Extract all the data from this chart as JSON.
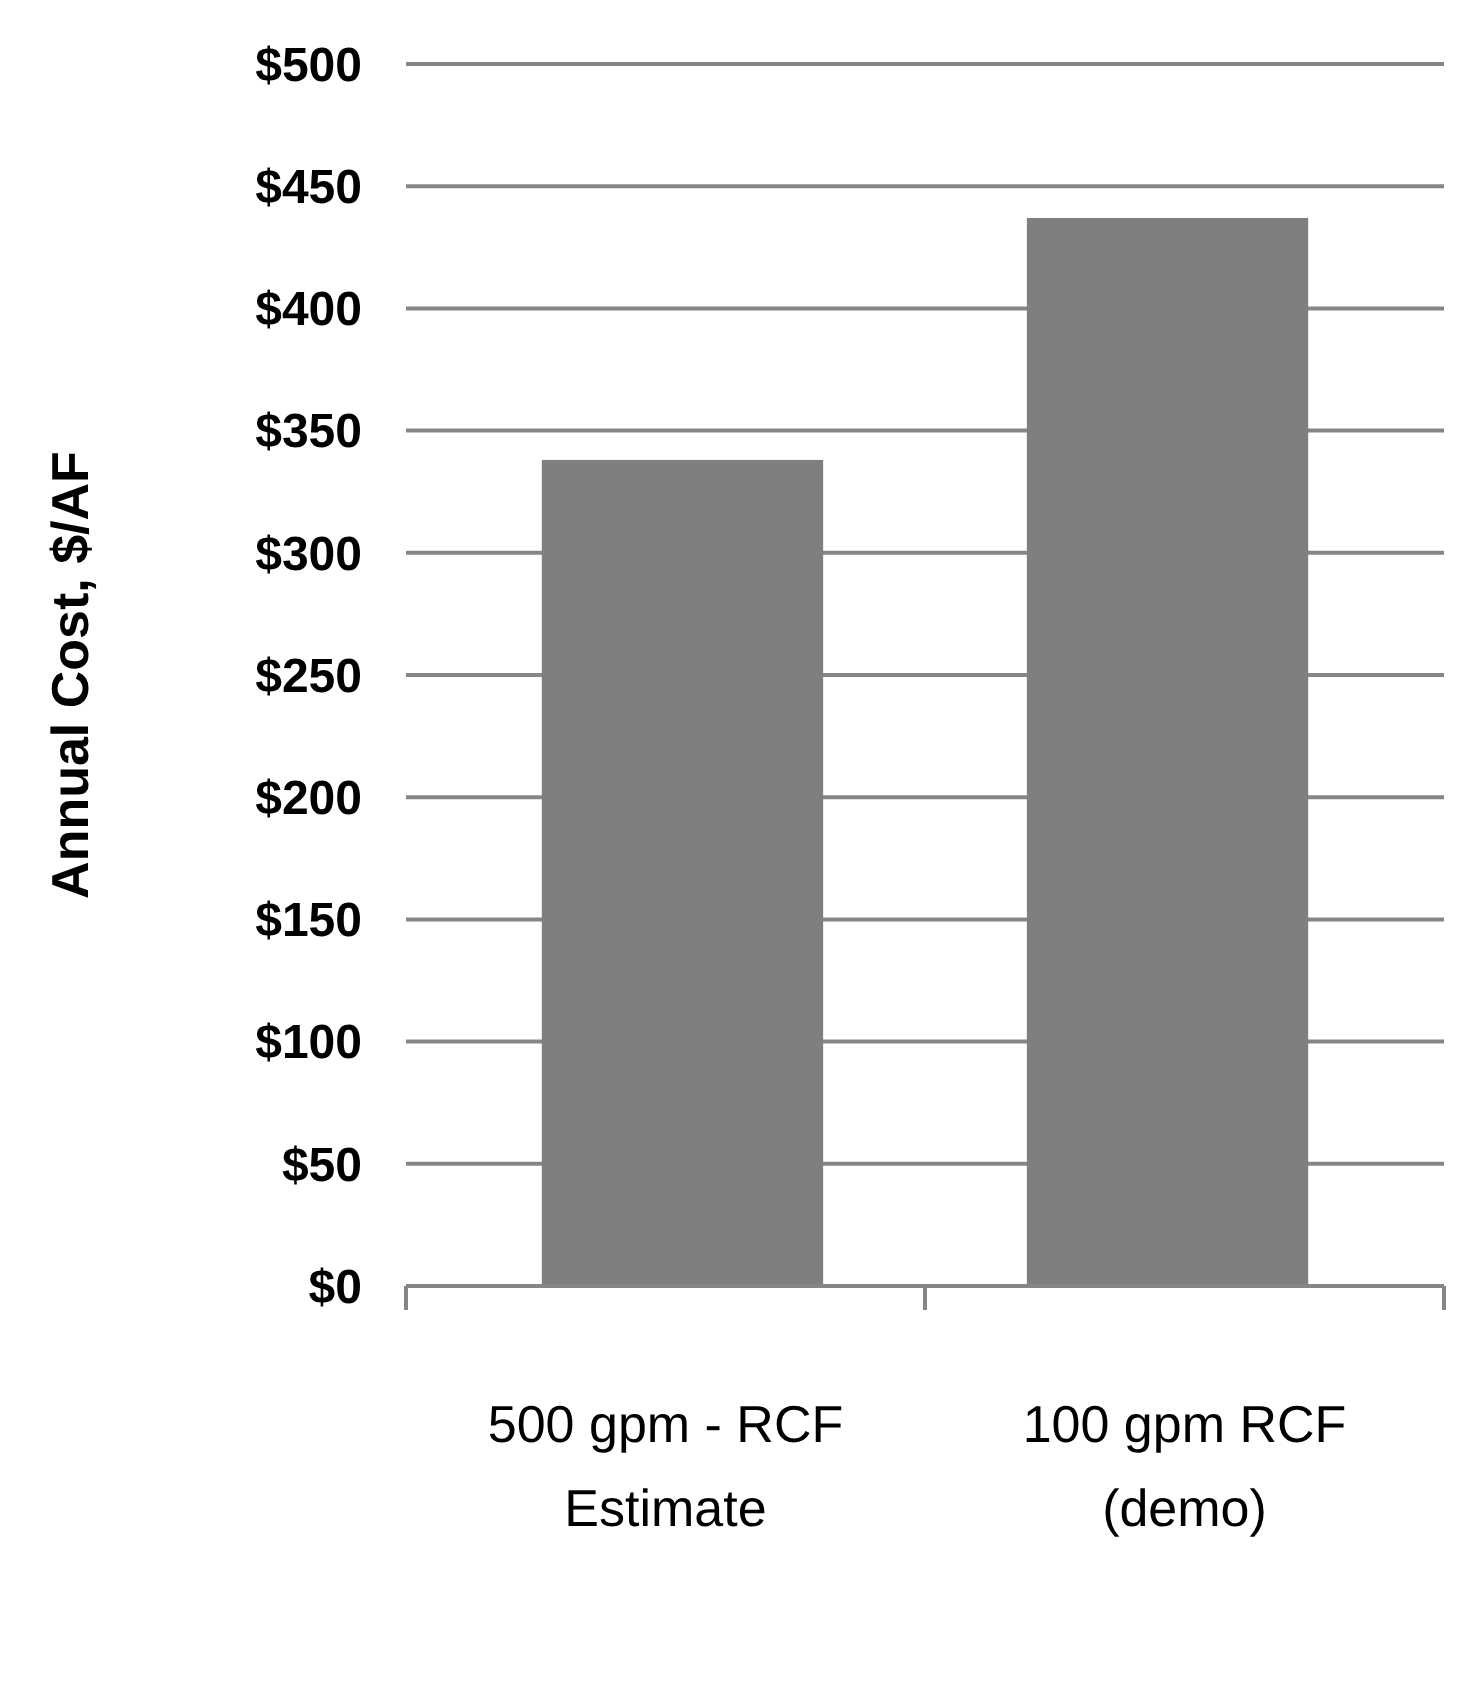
{
  "chart_data": {
    "type": "bar",
    "ylabel": "Annual Cost, $/AF",
    "categories": [
      "500 gpm - RCF Estimate",
      "100 gpm RCF (demo)"
    ],
    "values": [
      338,
      437
    ],
    "color": "#7f7f7f",
    "ylim": [
      0,
      500
    ],
    "yticks": [
      {
        "value": 0,
        "label": "$0"
      },
      {
        "value": 50,
        "label": "$50"
      },
      {
        "value": 100,
        "label": "$100"
      },
      {
        "value": 150,
        "label": "$150"
      },
      {
        "value": 200,
        "label": "$200"
      },
      {
        "value": 250,
        "label": "$250"
      },
      {
        "value": 300,
        "label": "$300"
      },
      {
        "value": 350,
        "label": "$350"
      },
      {
        "value": 400,
        "label": "$400"
      },
      {
        "value": 450,
        "label": "$450"
      },
      {
        "value": 500,
        "label": "$500"
      }
    ],
    "grid": "y"
  }
}
